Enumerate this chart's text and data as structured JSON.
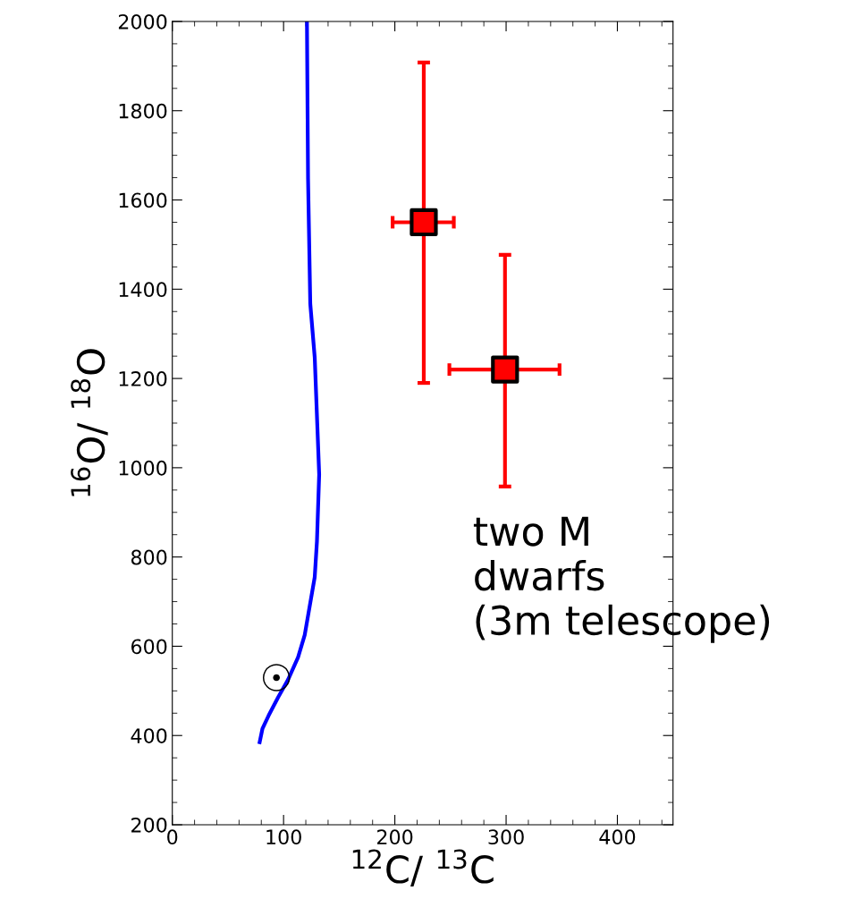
{
  "chart_data": {
    "type": "scatter",
    "xlabel": "$^{12}$C/ $^{13}$C",
    "ylabel": "$^{16}$O/ $^{18}$O",
    "xlim": [
      0,
      450
    ],
    "ylim": [
      200,
      2000
    ],
    "xticks": [
      0,
      100,
      200,
      300,
      400
    ],
    "yticks": [
      200,
      400,
      600,
      800,
      1000,
      1200,
      1400,
      1600,
      1800,
      2000
    ],
    "grid": false,
    "series": [
      {
        "type": "line",
        "color": "#0000ff",
        "marker": "none",
        "x": [
          78.5,
          81,
          86.6,
          95,
          104,
          113,
          119,
          128,
          130,
          132,
          128,
          124,
          122,
          121
        ],
        "values": [
          385,
          415,
          445,
          485,
          525,
          575,
          625,
          755,
          835,
          985,
          1247,
          1367,
          1647,
          2000
        ]
      },
      {
        "color": "#ff0000",
        "marker": "square",
        "x": [
          226,
          299
        ],
        "values": [
          1550,
          1220
        ],
        "errors": [
          [
            1190,
            1908
          ],
          [
            958,
            1477
          ]
        ],
        "xerrors": [
          [
            198,
            253
          ],
          [
            249,
            348
          ]
        ]
      }
    ],
    "annotations": [
      "☉",
      "two M\ndwarfs\n(3m telescope)"
    ]
  }
}
